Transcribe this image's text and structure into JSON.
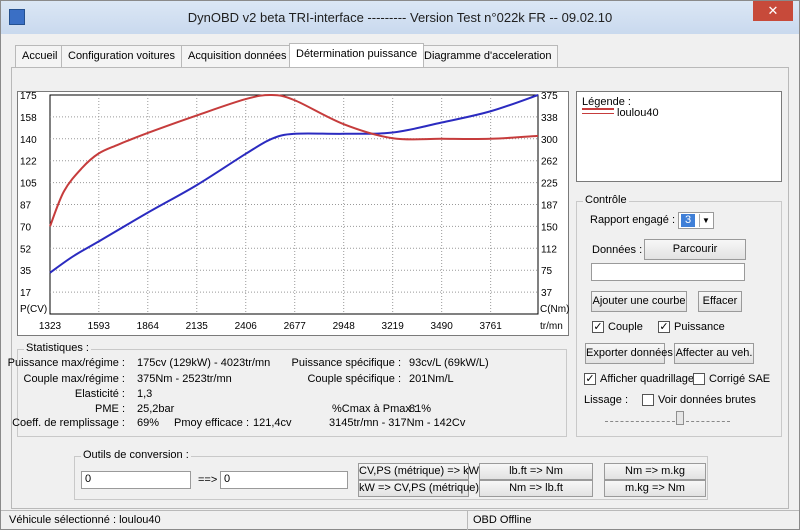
{
  "window": {
    "title": "DynOBD v2 beta TRI-interface --------- Version Test n°022k FR -- 09.02.10"
  },
  "tabs": [
    "Accueil",
    "Configuration voitures",
    "Acquisition données",
    "Détermination puissance",
    "Diagramme d'acceleration"
  ],
  "active_tab": 3,
  "chart_data": {
    "type": "line",
    "x": [
      1323,
      1593,
      1864,
      2135,
      2406,
      2677,
      2948,
      3219,
      3490,
      3761,
      4023
    ],
    "x_ticks": [
      "1323",
      "1593",
      "1864",
      "2135",
      "2406",
      "2677",
      "2948",
      "3219",
      "3490",
      "3761",
      "tr/mn"
    ],
    "left_ticks": [
      "175",
      "158",
      "140",
      "122",
      "105",
      "87",
      "70",
      "52",
      "35",
      "17"
    ],
    "right_ticks": [
      "375",
      "338",
      "300",
      "262",
      "225",
      "187",
      "150",
      "112",
      "75",
      "37"
    ],
    "left_label": "P(CV)",
    "right_label": "C(Nm)",
    "left_axis": [
      0,
      175
    ],
    "right_axis": [
      0,
      375
    ],
    "grid": true,
    "series": [
      {
        "name": "Puissance",
        "axis": "left",
        "color": "#2b2bc0",
        "x": [
          1323,
          1450,
          1593,
          1864,
          2135,
          2406,
          2550,
          2677,
          2948,
          3219,
          3490,
          3761,
          4023
        ],
        "values": [
          33,
          46,
          58,
          81,
          103,
          128,
          140,
          144,
          144,
          145,
          153,
          162,
          175
        ]
      },
      {
        "name": "Couple",
        "axis": "right",
        "color": "#c63c3c",
        "x": [
          1323,
          1400,
          1500,
          1593,
          1700,
          1864,
          2135,
          2406,
          2550,
          2677,
          2948,
          3219,
          3490,
          3761,
          4023
        ],
        "values": [
          150,
          210,
          250,
          275,
          290,
          310,
          340,
          368,
          375,
          366,
          325,
          301,
          300,
          300,
          305
        ]
      }
    ]
  },
  "legend": {
    "title": "Légende :",
    "entry": "loulou40",
    "color": "#c63c3c"
  },
  "controle": {
    "title": "Contrôle",
    "rapport_label": "Rapport engagé :",
    "rapport_value": "3",
    "donnees_label": "Données :",
    "parcourir": "Parcourir",
    "file_value": "",
    "ajouter": "Ajouter une courbe",
    "effacer": "Effacer",
    "couple": "Couple",
    "puissance": "Puissance",
    "exporter": "Exporter données",
    "affecter": "Affecter au veh.",
    "afficher_quadrillage": "Afficher quadrillage",
    "corrige_sae": "Corrigé SAE",
    "lissage": "Lissage :",
    "voir_brutes": "Voir données brutes",
    "couple_checked": true,
    "puissance_checked": true,
    "quadrillage_checked": true,
    "sae_checked": false,
    "brutes_checked": false
  },
  "stats": {
    "title": "Statistiques :",
    "labels": [
      "Puissance max/régime :",
      "Couple max/régime :",
      "Elasticité :",
      "PME :",
      "Coeff. de remplissage :"
    ],
    "values": [
      "175cv (129kW) - 4023tr/mn",
      "375Nm - 2523tr/mn",
      "1,3",
      "25,2bar",
      "69%"
    ],
    "pmoy_label": "Pmoy efficace :",
    "pmoy_value": "121,4cv",
    "right_labels": [
      "Puissance spécifique :",
      "Couple spécifique :"
    ],
    "right_values": [
      "93cv/L (69kW/L)",
      "201Nm/L"
    ],
    "cmax_label": "%Cmax à Pmax :",
    "cmax_value": "81%",
    "plage": "3145tr/mn - 317Nm - 142Cv"
  },
  "conversion": {
    "title": "Outils de conversion :",
    "input1": "0",
    "arrow": "==>",
    "input2": "0",
    "buttons": [
      "CV,PS (métrique) => kW",
      "kW => CV,PS (métrique)",
      "lb.ft => Nm",
      "Nm => lb.ft",
      "Nm => m.kg",
      "m.kg => Nm"
    ]
  },
  "status": {
    "vehicle": "Véhicule sélectionné : loulou40",
    "obd": "OBD Offline"
  }
}
